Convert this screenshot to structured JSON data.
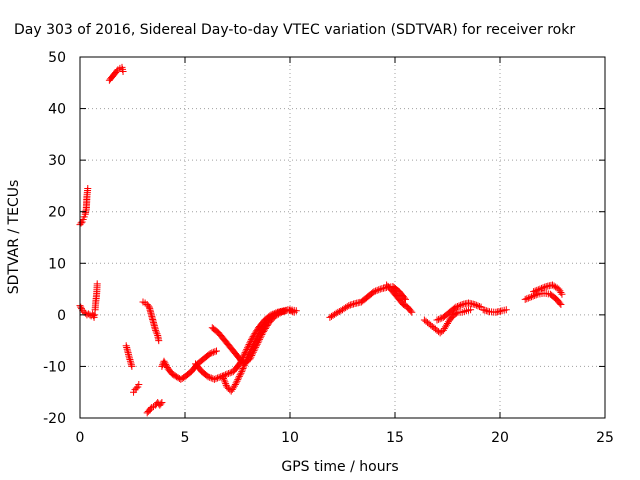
{
  "chart_data": {
    "type": "scatter",
    "title": "Day 303 of 2016, Sidereal Day-to-day VTEC variation (SDTVAR) for receiver rokr",
    "xlabel": "GPS time / hours",
    "ylabel": "SDTVAR / TECUs",
    "xlim": [
      0,
      25
    ],
    "ylim": [
      -20,
      50
    ],
    "xticks": [
      "0",
      "5",
      "10",
      "15",
      "20",
      "25"
    ],
    "yticks": [
      "-20",
      "-10",
      "0",
      "10",
      "20",
      "30",
      "40",
      "50"
    ],
    "grid": true,
    "legend": "none",
    "marker": "plus",
    "color": "#ff0000",
    "series": [
      {
        "x": [
          0.0,
          0.07,
          0.13,
          0.2,
          0.27,
          0.33,
          0.4,
          0.47,
          0.53,
          0.6,
          0.67,
          0.7
        ],
        "y": [
          1.8,
          1.2,
          0.8,
          0.5,
          0.3,
          0.0,
          0.2,
          0.0,
          -0.2,
          0.2,
          -0.5,
          0.0
        ]
      },
      {
        "x": [
          0.0,
          0.05,
          0.1,
          0.15,
          0.2,
          0.25,
          0.3,
          0.33,
          0.37
        ],
        "y": [
          17.5,
          17.8,
          18.0,
          18.5,
          19.0,
          19.5,
          20.5,
          23.0,
          24.5
        ]
      },
      {
        "x": [
          0.72,
          0.75,
          0.78,
          0.8,
          0.82
        ],
        "y": [
          1.0,
          2.5,
          3.5,
          4.5,
          6.0
        ]
      },
      {
        "x": [
          1.4,
          1.5,
          1.6,
          1.7,
          1.8,
          1.9,
          2.0,
          2.05
        ],
        "y": [
          45.5,
          46.0,
          46.5,
          47.0,
          47.5,
          47.8,
          48.0,
          47.2
        ]
      },
      {
        "x": [
          2.2,
          2.27,
          2.33,
          2.4,
          2.47
        ],
        "y": [
          -6.0,
          -7.0,
          -8.0,
          -9.0,
          -10.0
        ]
      },
      {
        "x": [
          2.55,
          2.62,
          2.68,
          2.75,
          2.8
        ],
        "y": [
          -15.0,
          -14.5,
          -14.2,
          -14.0,
          -13.5
        ]
      },
      {
        "x": [
          3.0,
          3.1,
          3.2,
          3.3,
          3.4,
          3.5,
          3.6,
          3.7,
          3.75
        ],
        "y": [
          2.5,
          2.3,
          2.0,
          1.5,
          0.0,
          -1.5,
          -3.0,
          -4.0,
          -5.0
        ]
      },
      {
        "x": [
          3.2,
          3.3,
          3.4,
          3.5,
          3.6,
          3.7,
          3.8,
          3.9
        ],
        "y": [
          -19.0,
          -18.5,
          -18.0,
          -17.8,
          -17.5,
          -17.0,
          -17.5,
          -17.0
        ]
      },
      {
        "x": [
          3.9,
          4.0,
          4.2,
          4.4,
          4.6,
          4.8,
          5.0,
          5.3,
          5.6,
          5.9,
          6.2,
          6.5
        ],
        "y": [
          -10.0,
          -9.0,
          -10.5,
          -11.5,
          -12.0,
          -12.5,
          -12.0,
          -11.0,
          -9.5,
          -8.5,
          -7.5,
          -7.0
        ]
      },
      {
        "x": [
          5.5,
          5.8,
          6.1,
          6.4,
          6.7,
          7.0,
          7.3,
          7.6,
          7.9,
          8.2,
          8.5,
          8.8,
          9.1,
          9.4,
          9.7,
          10.0,
          10.3
        ],
        "y": [
          -9.5,
          -11.0,
          -12.0,
          -12.5,
          -12.0,
          -11.5,
          -11.0,
          -9.5,
          -7.0,
          -4.5,
          -2.5,
          -1.0,
          0.0,
          0.5,
          0.8,
          1.0,
          0.8
        ]
      },
      {
        "x": [
          6.3,
          6.6,
          6.9,
          7.2,
          7.5,
          7.8,
          8.1,
          8.4,
          8.7,
          9.0,
          9.3,
          9.6,
          9.9,
          10.2
        ],
        "y": [
          -2.5,
          -3.5,
          -5.0,
          -6.5,
          -8.0,
          -9.5,
          -8.5,
          -6.0,
          -3.5,
          -1.5,
          -0.2,
          0.5,
          1.0,
          0.5
        ]
      },
      {
        "x": [
          6.8,
          7.0,
          7.2,
          7.4,
          7.7,
          8.0,
          8.3,
          8.6,
          8.9,
          9.2,
          9.5,
          9.8
        ],
        "y": [
          -12.0,
          -14.0,
          -14.8,
          -13.5,
          -11.0,
          -8.0,
          -5.5,
          -3.0,
          -1.2,
          0.0,
          0.5,
          0.8
        ]
      },
      {
        "x": [
          11.9,
          12.2,
          12.5,
          12.8,
          13.1,
          13.4,
          13.7,
          14.0,
          14.3,
          14.6,
          14.9,
          15.2,
          15.5
        ],
        "y": [
          -0.5,
          0.3,
          1.0,
          1.8,
          2.2,
          2.5,
          3.5,
          4.5,
          5.0,
          5.3,
          5.5,
          4.5,
          3.0
        ]
      },
      {
        "x": [
          14.6,
          14.8,
          15.0,
          15.2,
          15.4,
          15.6,
          15.8
        ],
        "y": [
          5.8,
          5.0,
          4.0,
          3.0,
          2.0,
          1.5,
          0.5
        ]
      },
      {
        "x": [
          16.4,
          16.55,
          16.7,
          16.85,
          17.0,
          17.15,
          17.3,
          17.45,
          17.6,
          17.8,
          18.0,
          18.2,
          18.4,
          18.6
        ],
        "y": [
          -1.0,
          -1.5,
          -2.0,
          -2.5,
          -3.0,
          -3.5,
          -3.0,
          -2.0,
          -1.0,
          0.0,
          0.5,
          0.5,
          0.8,
          1.0
        ]
      },
      {
        "x": [
          17.0,
          17.3,
          17.6,
          17.9,
          18.2,
          18.5,
          18.8,
          19.1
        ],
        "y": [
          -1.0,
          -0.5,
          0.5,
          1.5,
          2.0,
          2.3,
          2.0,
          1.5
        ]
      },
      {
        "x": [
          19.2,
          19.5,
          19.8,
          20.1,
          20.3
        ],
        "y": [
          1.0,
          0.6,
          0.5,
          0.8,
          1.0
        ]
      },
      {
        "x": [
          21.2,
          21.5,
          21.8,
          22.1,
          22.4,
          22.7,
          22.9
        ],
        "y": [
          3.0,
          3.5,
          4.0,
          4.2,
          4.0,
          3.0,
          2.0
        ]
      },
      {
        "x": [
          21.6,
          21.9,
          22.2,
          22.5,
          22.8,
          22.95
        ],
        "y": [
          4.5,
          5.0,
          5.5,
          5.8,
          5.0,
          4.0
        ]
      }
    ]
  }
}
